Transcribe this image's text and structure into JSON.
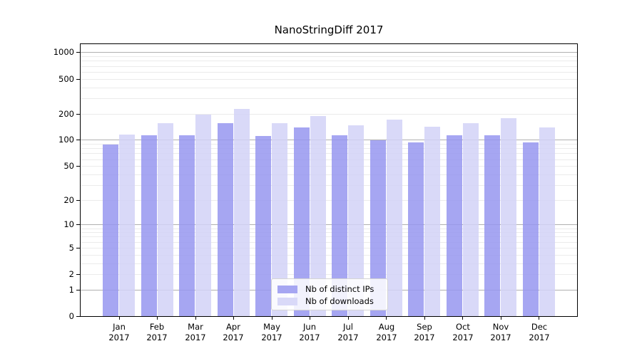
{
  "chart_data": {
    "type": "bar",
    "title": "NanoStringDiff 2017",
    "year": "2017",
    "categories": [
      "Jan",
      "Feb",
      "Mar",
      "Apr",
      "May",
      "Jun",
      "Jul",
      "Aug",
      "Sep",
      "Oct",
      "Nov",
      "Dec"
    ],
    "series": [
      {
        "name": "Nb of distinct IPs",
        "color": "#a6a6f2",
        "values": [
          88,
          112,
          112,
          155,
          111,
          139,
          114,
          100,
          94,
          112,
          113,
          93
        ]
      },
      {
        "name": "Nb of downloads",
        "color": "#d9d9f8",
        "values": [
          116,
          155,
          194,
          228,
          155,
          188,
          148,
          170,
          142,
          156,
          177,
          139
        ]
      }
    ],
    "yaxis": {
      "ticks": [
        0,
        1,
        2,
        5,
        10,
        20,
        50,
        100,
        200,
        500,
        1000
      ],
      "scale": "log10(1+x)",
      "range": [
        0,
        1250
      ],
      "major_gridlines": [
        1,
        10,
        100,
        1000
      ]
    },
    "xlabel": "",
    "ylabel": "",
    "grid": true,
    "legend_position": "lower-center-inside"
  }
}
